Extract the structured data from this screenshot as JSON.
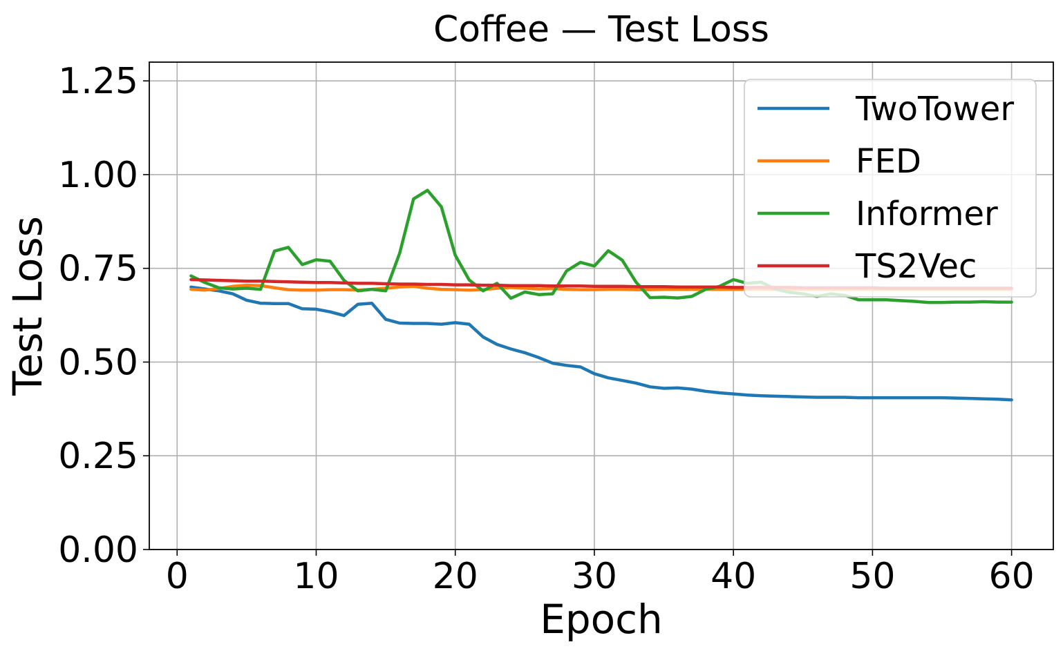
{
  "chart_data": {
    "type": "line",
    "title": "Coffee — Test Loss",
    "xlabel": "Epoch",
    "ylabel": "Test Loss",
    "xlim": [
      -2,
      63
    ],
    "ylim": [
      0,
      1.3
    ],
    "xticks": [
      0,
      10,
      20,
      30,
      40,
      50,
      60
    ],
    "xtick_labels": [
      "0",
      "10",
      "20",
      "30",
      "40",
      "50",
      "60"
    ],
    "yticks": [
      0,
      0.25,
      0.5,
      0.75,
      1.0,
      1.25
    ],
    "ytick_labels": [
      "0.00",
      "0.25",
      "0.50",
      "0.75",
      "1.00",
      "1.25"
    ],
    "grid": true,
    "legend_position": "top-right",
    "x": [
      1,
      2,
      3,
      4,
      5,
      6,
      7,
      8,
      9,
      10,
      11,
      12,
      13,
      14,
      15,
      16,
      17,
      18,
      19,
      20,
      21,
      22,
      23,
      24,
      25,
      26,
      27,
      28,
      29,
      30,
      31,
      32,
      33,
      34,
      35,
      36,
      37,
      38,
      39,
      40,
      41,
      42,
      43,
      44,
      45,
      46,
      47,
      48,
      49,
      50,
      51,
      52,
      53,
      54,
      55,
      56,
      57,
      58,
      59,
      60
    ],
    "series": [
      {
        "name": "TwoTower",
        "color": "#1f77b4",
        "values": [
          0.7,
          0.695,
          0.69,
          0.682,
          0.665,
          0.657,
          0.656,
          0.656,
          0.642,
          0.641,
          0.634,
          0.624,
          0.654,
          0.657,
          0.614,
          0.604,
          0.603,
          0.603,
          0.601,
          0.605,
          0.601,
          0.567,
          0.547,
          0.535,
          0.525,
          0.512,
          0.497,
          0.491,
          0.487,
          0.469,
          0.458,
          0.451,
          0.444,
          0.434,
          0.43,
          0.431,
          0.428,
          0.422,
          0.418,
          0.415,
          0.412,
          0.41,
          0.409,
          0.408,
          0.407,
          0.406,
          0.406,
          0.406,
          0.405,
          0.405,
          0.405,
          0.405,
          0.405,
          0.405,
          0.405,
          0.404,
          0.403,
          0.402,
          0.401,
          0.399
        ]
      },
      {
        "name": "FED",
        "color": "#ff7f0e",
        "values": [
          0.694,
          0.692,
          0.696,
          0.702,
          0.705,
          0.704,
          0.698,
          0.693,
          0.692,
          0.692,
          0.693,
          0.693,
          0.692,
          0.694,
          0.697,
          0.7,
          0.702,
          0.697,
          0.694,
          0.693,
          0.692,
          0.693,
          0.697,
          0.699,
          0.697,
          0.695,
          0.696,
          0.694,
          0.693,
          0.693,
          0.694,
          0.694,
          0.693,
          0.693,
          0.694,
          0.694,
          0.694,
          0.694,
          0.694,
          0.694,
          0.694,
          0.694,
          0.694,
          0.694,
          0.694,
          0.694,
          0.694,
          0.694,
          0.694,
          0.694,
          0.694,
          0.694,
          0.694,
          0.694,
          0.694,
          0.694,
          0.694,
          0.694,
          0.694,
          0.694
        ]
      },
      {
        "name": "Informer",
        "color": "#2ca02c",
        "values": [
          0.73,
          0.712,
          0.698,
          0.695,
          0.697,
          0.694,
          0.796,
          0.806,
          0.76,
          0.773,
          0.769,
          0.718,
          0.69,
          0.694,
          0.69,
          0.79,
          0.935,
          0.958,
          0.914,
          0.785,
          0.719,
          0.69,
          0.71,
          0.67,
          0.687,
          0.68,
          0.682,
          0.743,
          0.766,
          0.756,
          0.797,
          0.772,
          0.713,
          0.672,
          0.673,
          0.671,
          0.675,
          0.694,
          0.702,
          0.72,
          0.71,
          0.713,
          0.695,
          0.686,
          0.682,
          0.675,
          0.682,
          0.678,
          0.666,
          0.666,
          0.666,
          0.664,
          0.662,
          0.659,
          0.659,
          0.66,
          0.66,
          0.661,
          0.66,
          0.66
        ]
      },
      {
        "name": "TS2Vec",
        "color": "#d62728",
        "values": [
          0.72,
          0.719,
          0.718,
          0.717,
          0.716,
          0.716,
          0.715,
          0.714,
          0.713,
          0.712,
          0.712,
          0.711,
          0.71,
          0.71,
          0.709,
          0.708,
          0.708,
          0.707,
          0.707,
          0.706,
          0.706,
          0.705,
          0.705,
          0.704,
          0.704,
          0.704,
          0.703,
          0.703,
          0.703,
          0.702,
          0.702,
          0.702,
          0.701,
          0.701,
          0.701,
          0.7,
          0.7,
          0.7,
          0.7,
          0.699,
          0.699,
          0.699,
          0.699,
          0.699,
          0.698,
          0.698,
          0.698,
          0.698,
          0.698,
          0.698,
          0.697,
          0.697,
          0.697,
          0.697,
          0.697,
          0.697,
          0.697,
          0.697,
          0.697,
          0.697
        ]
      }
    ]
  }
}
